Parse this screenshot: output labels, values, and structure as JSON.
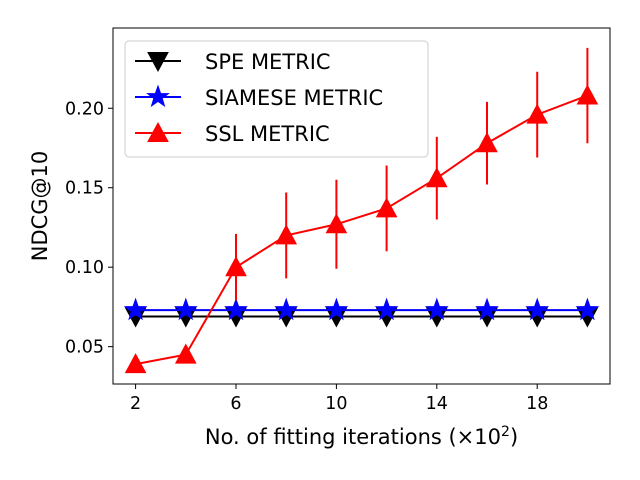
{
  "chart_data": {
    "type": "line",
    "title": "",
    "xlabel": "No. of fitting iterations (×10",
    "xlabel_sup": "2",
    "xlabel_close": ")",
    "ylabel": "NDCG@10",
    "x": [
      2,
      4,
      6,
      8,
      10,
      12,
      14,
      16,
      18,
      20
    ],
    "xticks": [
      2,
      6,
      10,
      14,
      18
    ],
    "yticks": [
      0.05,
      0.1,
      0.15,
      0.2
    ],
    "ytick_labels": [
      "0.05",
      "0.10",
      "0.15",
      "0.20"
    ],
    "xlim": [
      1.1,
      20.9
    ],
    "ylim": [
      0.0265,
      0.2505
    ],
    "legend_position": "upper-left",
    "series": [
      {
        "name": "SPE METRIC",
        "color": "#000000",
        "marker": "triangle-down",
        "values": [
          0.069,
          0.069,
          0.069,
          0.069,
          0.069,
          0.069,
          0.069,
          0.069,
          0.069,
          0.069
        ],
        "errors": [
          0,
          0,
          0,
          0,
          0,
          0,
          0,
          0,
          0,
          0
        ]
      },
      {
        "name": "SIAMESE METRIC",
        "color": "#0000ff",
        "marker": "star",
        "values": [
          0.073,
          0.073,
          0.073,
          0.073,
          0.073,
          0.073,
          0.073,
          0.073,
          0.073,
          0.073
        ],
        "errors": [
          0,
          0,
          0,
          0,
          0,
          0,
          0,
          0,
          0,
          0
        ]
      },
      {
        "name": "SSL METRIC",
        "color": "#ff0000",
        "marker": "triangle-up",
        "values": [
          0.039,
          0.045,
          0.1,
          0.12,
          0.127,
          0.137,
          0.156,
          0.178,
          0.196,
          0.208
        ],
        "errors": [
          0,
          0,
          0.021,
          0.027,
          0.028,
          0.027,
          0.026,
          0.026,
          0.027,
          0.03
        ]
      }
    ]
  }
}
